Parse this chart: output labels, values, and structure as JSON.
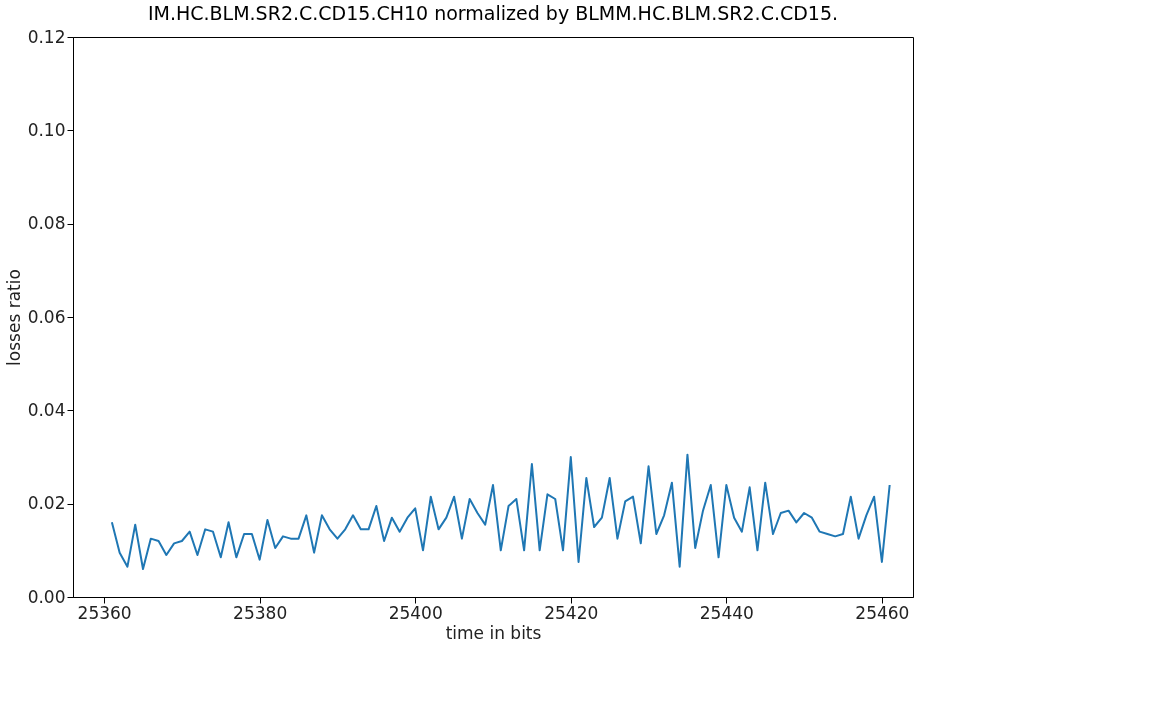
{
  "chart_data": {
    "type": "line",
    "title": "IM.HC.BLM.SR2.C.CD15.CH10 normalized by BLMM.HC.BLM.SR2.C.CD15.",
    "xlabel": "time in bits",
    "ylabel": "losses ratio",
    "x": [
      25361,
      25362,
      25363,
      25364,
      25365,
      25366,
      25367,
      25368,
      25369,
      25370,
      25371,
      25372,
      25373,
      25374,
      25375,
      25376,
      25377,
      25378,
      25379,
      25380,
      25381,
      25382,
      25383,
      25384,
      25385,
      25386,
      25387,
      25388,
      25389,
      25390,
      25391,
      25392,
      25393,
      25394,
      25395,
      25396,
      25397,
      25398,
      25399,
      25400,
      25401,
      25402,
      25403,
      25404,
      25405,
      25406,
      25407,
      25408,
      25409,
      25410,
      25411,
      25412,
      25413,
      25414,
      25415,
      25416,
      25417,
      25418,
      25419,
      25420,
      25421,
      25422,
      25423,
      25424,
      25425,
      25426,
      25427,
      25428,
      25429,
      25430,
      25431,
      25432,
      25433,
      25434,
      25435,
      25436,
      25437,
      25438,
      25439,
      25440,
      25441,
      25442,
      25443,
      25444,
      25445,
      25446,
      25447,
      25448,
      25449,
      25450,
      25451,
      25452,
      25453,
      25454,
      25455,
      25456,
      25457,
      25458,
      25459,
      25460,
      25461
    ],
    "series": [
      {
        "color": "#1f77b4",
        "values": [
          0.016,
          0.0095,
          0.0065,
          0.0155,
          0.006,
          0.0125,
          0.012,
          0.009,
          0.0115,
          0.012,
          0.014,
          0.009,
          0.0145,
          0.014,
          0.0085,
          0.016,
          0.0085,
          0.0135,
          0.0135,
          0.008,
          0.0165,
          0.0105,
          0.013,
          0.0125,
          0.0125,
          0.0175,
          0.0095,
          0.0175,
          0.0145,
          0.0125,
          0.0145,
          0.0175,
          0.0145,
          0.0145,
          0.0195,
          0.012,
          0.017,
          0.014,
          0.017,
          0.019,
          0.01,
          0.0215,
          0.0145,
          0.017,
          0.0215,
          0.0125,
          0.021,
          0.018,
          0.0155,
          0.024,
          0.01,
          0.0195,
          0.021,
          0.01,
          0.0285,
          0.01,
          0.022,
          0.021,
          0.01,
          0.03,
          0.0075,
          0.0255,
          0.015,
          0.017,
          0.0255,
          0.0125,
          0.0205,
          0.0215,
          0.0115,
          0.028,
          0.0135,
          0.0175,
          0.0245,
          0.0065,
          0.0305,
          0.0105,
          0.0185,
          0.024,
          0.0085,
          0.024,
          0.017,
          0.014,
          0.0235,
          0.01,
          0.0245,
          0.0135,
          0.018,
          0.0185,
          0.016,
          0.018,
          0.017,
          0.014,
          0.0135,
          0.013,
          0.0135,
          0.0215,
          0.0125,
          0.0175,
          0.0215,
          0.0075,
          0.024
        ]
      }
    ],
    "xlim": [
      25356,
      25464
    ],
    "xticks": [
      25360,
      25380,
      25400,
      25420,
      25440,
      25460
    ],
    "ylim": [
      0,
      0.12
    ],
    "yticks": [
      {
        "value": 0,
        "label": "0.00"
      },
      0.02,
      0.04,
      0.06,
      0.08,
      {
        "value": 0.1,
        "label": "0.10"
      },
      0.12
    ],
    "grid": false,
    "legend": false,
    "marker": "none",
    "line_style": "solid"
  }
}
